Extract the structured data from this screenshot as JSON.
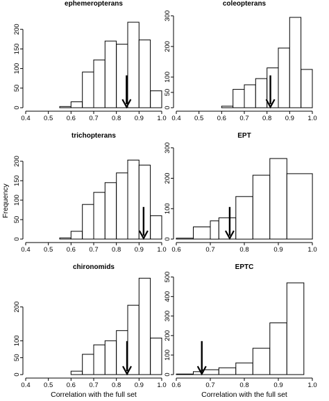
{
  "figure": {
    "ylabel": "Frequency",
    "xlabel": "Correlation with the full set"
  },
  "chart_data": [
    {
      "type": "bar",
      "title": "ephemeropterans",
      "xlim": [
        0.4,
        1.0
      ],
      "xticks": [
        "0.4",
        "0.5",
        "0.6",
        "0.7",
        "0.8",
        "0.9",
        "1.0"
      ],
      "ylim": [
        0,
        250
      ],
      "yticks": [
        "0",
        "50",
        "100",
        "150",
        "200"
      ],
      "bin_edges": [
        0.55,
        0.6,
        0.65,
        0.7,
        0.75,
        0.8,
        0.85,
        0.9,
        0.95,
        1.0
      ],
      "values": [
        3,
        15,
        91,
        122,
        170,
        162,
        218,
        173,
        43
      ],
      "arrow_x": 0.845
    },
    {
      "type": "bar",
      "title": "coleopterans",
      "xlim": [
        0.4,
        1.0
      ],
      "xticks": [
        "0.4",
        "0.5",
        "0.6",
        "0.7",
        "0.8",
        "0.9",
        "1.0"
      ],
      "ylim": [
        0,
        320
      ],
      "yticks": [
        "0",
        "50",
        "100",
        "200",
        "300"
      ],
      "bin_edges": [
        0.6,
        0.65,
        0.7,
        0.75,
        0.8,
        0.85,
        0.9,
        0.95,
        1.0
      ],
      "values": [
        5,
        60,
        75,
        95,
        130,
        195,
        295,
        125
      ],
      "arrow_x": 0.815
    },
    {
      "type": "bar",
      "title": "trichopterans",
      "xlim": [
        0.4,
        1.0
      ],
      "xticks": [
        "0.4",
        "0.5",
        "0.6",
        "0.7",
        "0.8",
        "0.9",
        "1.0"
      ],
      "ylim": [
        0,
        250
      ],
      "yticks": [
        "0",
        "50",
        "100",
        "150",
        "200"
      ],
      "bin_edges": [
        0.55,
        0.6,
        0.65,
        0.7,
        0.75,
        0.8,
        0.85,
        0.9,
        0.95,
        1.0
      ],
      "values": [
        3,
        20,
        89,
        120,
        145,
        170,
        203,
        190,
        60
      ],
      "arrow_x": 0.92
    },
    {
      "type": "bar",
      "title": "EPT",
      "xlim": [
        0.6,
        1.0
      ],
      "xticks": [
        "0.6",
        "0.7",
        "0.8",
        "0.9",
        "1.0"
      ],
      "ylim": [
        0,
        320
      ],
      "yticks": [
        "0",
        "100",
        "200",
        "300"
      ],
      "bin_edges": [
        0.6,
        0.65,
        0.7,
        0.725,
        0.775,
        0.825,
        0.875,
        0.925,
        1.0
      ],
      "values": [
        3,
        40,
        60,
        70,
        140,
        210,
        265,
        215
      ],
      "arrow_x": 0.757
    },
    {
      "type": "bar",
      "title": "chironomids",
      "xlim": [
        0.4,
        1.0
      ],
      "xticks": [
        "0.4",
        "0.5",
        "0.6",
        "0.7",
        "0.8",
        "0.9",
        "1.0"
      ],
      "ylim": [
        0,
        300
      ],
      "yticks": [
        "0",
        "50",
        "100",
        "200"
      ],
      "bin_edges": [
        0.6,
        0.65,
        0.7,
        0.75,
        0.8,
        0.85,
        0.9,
        0.95,
        1.0
      ],
      "values": [
        10,
        60,
        88,
        100,
        130,
        205,
        285,
        108
      ],
      "arrow_x": 0.847
    },
    {
      "type": "bar",
      "title": "EPTC",
      "xlim": [
        0.6,
        1.0
      ],
      "xticks": [
        "0.6",
        "0.7",
        "0.8",
        "0.9",
        "1.0"
      ],
      "ylim": [
        0,
        520
      ],
      "yticks": [
        "0",
        "100",
        "200",
        "300",
        "400",
        "500"
      ],
      "bin_edges": [
        0.6,
        0.65,
        0.675,
        0.725,
        0.775,
        0.825,
        0.875,
        0.925,
        0.975
      ],
      "values": [
        3,
        15,
        25,
        35,
        60,
        135,
        265,
        470
      ],
      "arrow_x": 0.675
    }
  ]
}
